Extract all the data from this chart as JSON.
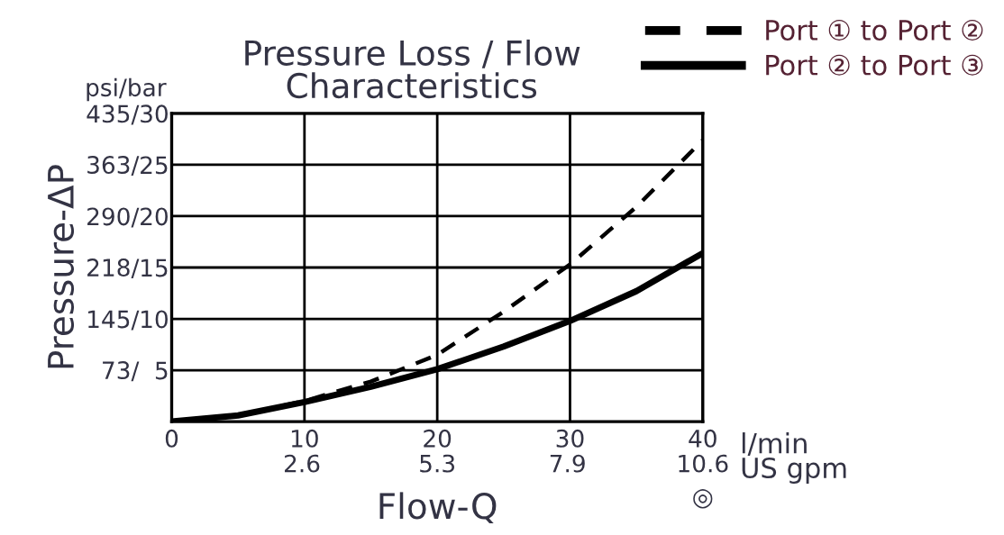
{
  "chart_data": {
    "type": "line",
    "title": "Pressure Loss / Flow\nCharacteristics",
    "xlabel": "Flow-Q",
    "y2label": "Pressure-ΔP",
    "x": [
      0,
      5,
      10,
      15,
      20,
      25,
      30,
      35,
      40
    ],
    "series": [
      {
        "name": "Port ① to Port ②",
        "color": "#000000",
        "line_style": "dashed",
        "values": [
          0,
          0.6,
          2.0,
          3.9,
          6.5,
          10.7,
          15.3,
          20.9,
          27.4
        ]
      },
      {
        "name": "Port ② to Port ③",
        "color": "#000000",
        "line_style": "solid",
        "values": [
          0,
          0.6,
          1.9,
          3.4,
          5.1,
          7.3,
          9.8,
          12.7,
          16.4
        ]
      }
    ],
    "xlim": [
      0,
      40
    ],
    "ylim": [
      0,
      30
    ],
    "xticks": [
      0,
      10,
      20,
      30,
      40
    ],
    "x2lim": [
      0,
      10.6
    ],
    "x2ticks": [
      2.6,
      5.3,
      7.9,
      10.6
    ],
    "yticks": [
      5,
      10,
      15,
      20,
      25,
      30
    ],
    "y2lim": [
      0,
      435
    ],
    "y2ticks": [
      {
        "value": 73,
        "label": "73/"
      },
      {
        "value": 145,
        "label": "145/"
      },
      {
        "value": 218,
        "label": "218/"
      },
      {
        "value": 290,
        "label": "290/"
      },
      {
        "value": 363,
        "label": "363/"
      },
      {
        "value": 435,
        "label": "435/"
      }
    ],
    "grid": true,
    "legend": "top right",
    "marker": "none",
    "annotations": [
      "psi/bar",
      "l/min",
      "US gpm",
      "◎"
    ]
  }
}
